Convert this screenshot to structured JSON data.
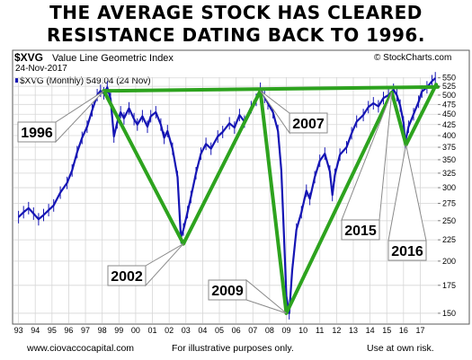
{
  "headline": {
    "line1": "THE AVERAGE STOCK HAS CLEARED",
    "line2": "RESISTANCE DATING BACK TO 1996."
  },
  "header": {
    "symbol": "$XVG",
    "name": "Value Line Geometric Index",
    "date": "24-Nov-2017",
    "source": "© StockCharts.com",
    "legend": "$XVG (Monthly) 549.04 (24 Nov)"
  },
  "footer": {
    "website": "www.ciovaccocapital.com",
    "disclaimer": "For illustrative purposes only.",
    "risk": "Use at own risk."
  },
  "colors": {
    "price": "#1515b4",
    "trendline": "#2da31e",
    "grid": "#d6d6d6",
    "frame": "#5a5a5a"
  },
  "chart_data": {
    "type": "line",
    "series": [
      {
        "name": "$XVG (Monthly)",
        "x": [
          1993.0,
          1993.3,
          1993.6,
          1993.9,
          1994.2,
          1994.5,
          1994.8,
          1995.1,
          1995.5,
          1995.9,
          1996.2,
          1996.5,
          1996.8,
          1997.1,
          1997.4,
          1997.7,
          1997.9,
          1998.1,
          1998.3,
          1998.5,
          1998.7,
          1998.9,
          1999.1,
          1999.3,
          1999.6,
          1999.9,
          2000.1,
          2000.4,
          2000.7,
          2000.9,
          2001.2,
          2001.5,
          2001.7,
          2001.9,
          2002.2,
          2002.5,
          2002.7,
          2002.85,
          2003.1,
          2003.3,
          2003.6,
          2003.9,
          2004.2,
          2004.5,
          2004.9,
          2005.2,
          2005.6,
          2005.9,
          2006.2,
          2006.5,
          2006.9,
          2007.2,
          2007.45,
          2007.7,
          2007.9,
          2008.2,
          2008.5,
          2008.7,
          2008.85,
          2009.0,
          2009.17,
          2009.35,
          2009.6,
          2009.9,
          2010.2,
          2010.4,
          2010.7,
          2011.0,
          2011.3,
          2011.6,
          2011.75,
          2011.9,
          2012.2,
          2012.6,
          2012.9,
          2013.2,
          2013.6,
          2013.9,
          2014.2,
          2014.5,
          2014.8,
          2015.1,
          2015.4,
          2015.6,
          2015.8,
          2016.0,
          2016.1,
          2016.3,
          2016.6,
          2016.9,
          2017.1,
          2017.4,
          2017.7,
          2017.9
        ],
        "values": [
          255,
          262,
          268,
          260,
          252,
          258,
          265,
          272,
          292,
          308,
          330,
          365,
          395,
          420,
          460,
          500,
          512,
          505,
          522,
          490,
          398,
          430,
          455,
          440,
          465,
          438,
          425,
          445,
          420,
          445,
          455,
          425,
          395,
          410,
          372,
          318,
          228,
          238,
          262,
          285,
          325,
          362,
          382,
          372,
          398,
          408,
          428,
          418,
          448,
          432,
          468,
          487,
          518,
          495,
          478,
          455,
          410,
          330,
          235,
          165,
          150,
          190,
          238,
          262,
          295,
          282,
          318,
          348,
          362,
          328,
          288,
          322,
          360,
          375,
          405,
          432,
          448,
          468,
          478,
          470,
          492,
          500,
          515,
          500,
          472,
          430,
          385,
          420,
          450,
          482,
          510,
          522,
          540,
          549
        ]
      }
    ],
    "x_ticks": [
      "93",
      "94",
      "95",
      "96",
      "97",
      "98",
      "99",
      "00",
      "01",
      "02",
      "03",
      "04",
      "05",
      "06",
      "07",
      "08",
      "09",
      "10",
      "11",
      "12",
      "13",
      "14",
      "15",
      "16",
      "17"
    ],
    "y_ticks": [
      150,
      175,
      200,
      225,
      250,
      275,
      300,
      325,
      350,
      375,
      400,
      425,
      450,
      475,
      500,
      525,
      550
    ],
    "ylim": [
      142,
      552
    ],
    "xlim": [
      1992.7,
      2018.05
    ],
    "y_scale": "log",
    "grid": true,
    "y_axis_side": "right",
    "annotations": [
      {
        "label": "1996",
        "x": 1998.1,
        "y": 512
      },
      {
        "label": "2002",
        "x": 2002.85,
        "y": 220
      },
      {
        "label": "2007",
        "x": 2007.45,
        "y": 512
      },
      {
        "label": "2009",
        "x": 2009.0,
        "y": 150
      },
      {
        "label": "2015",
        "x": 2015.3,
        "y": 508
      },
      {
        "label": "2016",
        "x": 2016.15,
        "y": 380
      }
    ],
    "trendlines": [
      {
        "points": [
          [
            1998.1,
            512
          ],
          [
            2002.85,
            220
          ],
          [
            2007.45,
            512
          ],
          [
            2009.0,
            150
          ],
          [
            2015.3,
            508
          ],
          [
            2016.15,
            380
          ],
          [
            2017.95,
            530
          ]
        ]
      },
      {
        "points": [
          [
            1998.1,
            512
          ],
          [
            2018.05,
            523
          ]
        ]
      }
    ]
  }
}
